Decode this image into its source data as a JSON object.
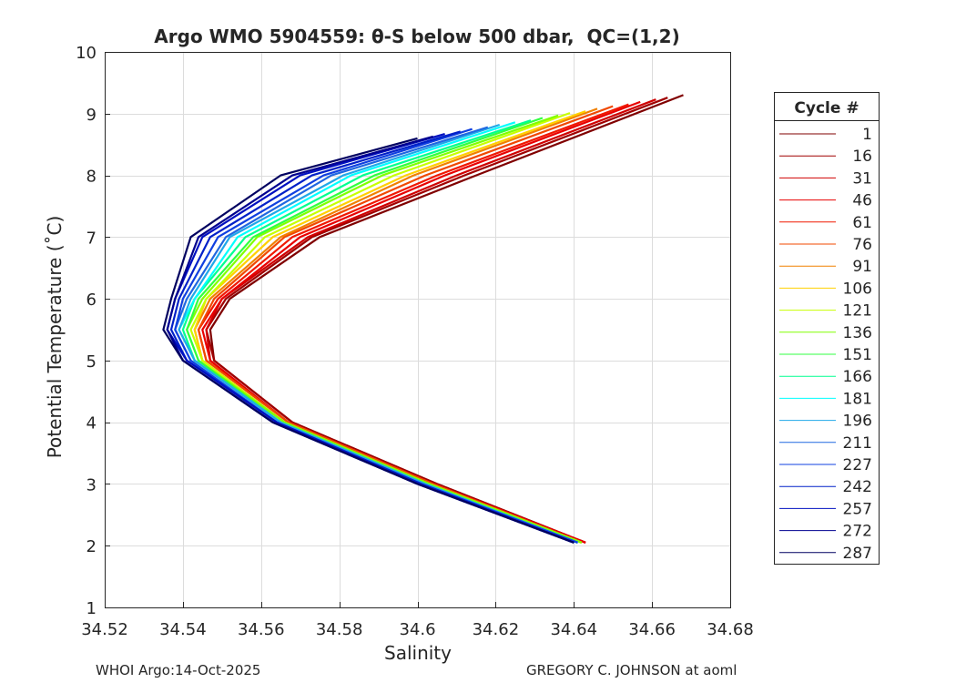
{
  "chart_data": {
    "type": "line",
    "title": "Argo WMO 5904559: θ-S below 500 dbar,  QC=(1,2)",
    "xlabel": "Salinity",
    "ylabel": "Potential Temperature (˚C)",
    "xlim": [
      34.52,
      34.68
    ],
    "ylim": [
      1,
      10
    ],
    "xticks": [
      "34.52",
      "34.54",
      "34.56",
      "34.58",
      "34.6",
      "34.62",
      "34.64",
      "34.66",
      "34.68"
    ],
    "xtick_values": [
      34.52,
      34.54,
      34.56,
      34.58,
      34.6,
      34.62,
      34.64,
      34.66,
      34.68
    ],
    "yticks": [
      "1",
      "2",
      "3",
      "4",
      "5",
      "6",
      "7",
      "8",
      "9",
      "10"
    ],
    "ytick_values": [
      1,
      2,
      3,
      4,
      5,
      6,
      7,
      8,
      9,
      10
    ],
    "grid": true,
    "legend": {
      "title": "Cycle #",
      "placement": "right-outside"
    },
    "theta_levels": [
      2.05,
      3,
      4,
      5,
      5.5,
      6,
      7,
      8
    ],
    "series": [
      {
        "name": "1",
        "color": "#800000",
        "salinity": [
          34.643,
          34.605,
          34.568,
          34.548,
          34.547,
          34.552,
          34.575,
          34.615
        ],
        "top": [
          34.668,
          9.3
        ]
      },
      {
        "name": "16",
        "color": "#a00000",
        "salinity": [
          34.643,
          34.605,
          34.568,
          34.548,
          34.546,
          34.551,
          34.573,
          34.612
        ],
        "top": [
          34.664,
          9.26
        ]
      },
      {
        "name": "31",
        "color": "#d00000",
        "salinity": [
          34.643,
          34.604,
          34.567,
          34.547,
          34.546,
          34.55,
          34.572,
          34.61
        ],
        "top": [
          34.661,
          9.23
        ]
      },
      {
        "name": "46",
        "color": "#e80000",
        "salinity": [
          34.643,
          34.604,
          34.567,
          34.547,
          34.545,
          34.55,
          34.57,
          34.607
        ],
        "top": [
          34.657,
          9.19
        ]
      },
      {
        "name": "61",
        "color": "#f01800",
        "salinity": [
          34.642,
          34.604,
          34.567,
          34.546,
          34.544,
          34.549,
          34.568,
          34.605
        ],
        "top": [
          34.654,
          9.15
        ]
      },
      {
        "name": "76",
        "color": "#f04800",
        "salinity": [
          34.642,
          34.604,
          34.567,
          34.546,
          34.544,
          34.548,
          34.566,
          34.602
        ],
        "top": [
          34.65,
          9.12
        ]
      },
      {
        "name": "91",
        "color": "#f08000",
        "salinity": [
          34.642,
          34.603,
          34.566,
          34.545,
          34.543,
          34.547,
          34.565,
          34.599
        ],
        "top": [
          34.646,
          9.08
        ]
      },
      {
        "name": "106",
        "color": "#ffd000",
        "salinity": [
          34.642,
          34.603,
          34.566,
          34.545,
          34.543,
          34.546,
          34.563,
          34.597
        ],
        "top": [
          34.643,
          9.04
        ]
      },
      {
        "name": "121",
        "color": "#c8ff00",
        "salinity": [
          34.642,
          34.603,
          34.566,
          34.545,
          34.542,
          34.546,
          34.561,
          34.594
        ],
        "top": [
          34.639,
          9.01
        ]
      },
      {
        "name": "136",
        "color": "#80ff00",
        "salinity": [
          34.642,
          34.603,
          34.566,
          34.544,
          34.541,
          34.545,
          34.559,
          34.591
        ],
        "top": [
          34.636,
          8.97
        ]
      },
      {
        "name": "151",
        "color": "#30ff40",
        "salinity": [
          34.641,
          34.602,
          34.565,
          34.544,
          34.541,
          34.544,
          34.558,
          34.589
        ],
        "top": [
          34.632,
          8.93
        ]
      },
      {
        "name": "166",
        "color": "#00ff90",
        "salinity": [
          34.641,
          34.602,
          34.565,
          34.543,
          34.54,
          34.543,
          34.556,
          34.586
        ],
        "top": [
          34.629,
          8.89
        ]
      },
      {
        "name": "181",
        "color": "#00ffff",
        "salinity": [
          34.641,
          34.602,
          34.565,
          34.543,
          34.539,
          34.543,
          34.554,
          34.583
        ],
        "top": [
          34.625,
          8.86
        ]
      },
      {
        "name": "196",
        "color": "#20a8e8",
        "salinity": [
          34.641,
          34.602,
          34.565,
          34.543,
          34.539,
          34.542,
          34.552,
          34.581
        ],
        "top": [
          34.621,
          8.82
        ]
      },
      {
        "name": "211",
        "color": "#2068e0",
        "salinity": [
          34.641,
          34.601,
          34.564,
          34.542,
          34.538,
          34.541,
          34.551,
          34.578
        ],
        "top": [
          34.618,
          8.78
        ]
      },
      {
        "name": "227",
        "color": "#1040e0",
        "salinity": [
          34.641,
          34.601,
          34.564,
          34.542,
          34.538,
          34.54,
          34.549,
          34.576
        ],
        "top": [
          34.614,
          8.75
        ]
      },
      {
        "name": "242",
        "color": "#0020c8",
        "salinity": [
          34.64,
          34.601,
          34.564,
          34.541,
          34.537,
          34.539,
          34.547,
          34.573
        ],
        "top": [
          34.611,
          8.71
        ]
      },
      {
        "name": "257",
        "color": "#0010c0",
        "salinity": [
          34.64,
          34.6,
          34.564,
          34.541,
          34.536,
          34.538,
          34.545,
          34.57
        ],
        "top": [
          34.607,
          8.67
        ]
      },
      {
        "name": "272",
        "color": "#000090",
        "salinity": [
          34.64,
          34.6,
          34.563,
          34.54,
          34.536,
          34.538,
          34.544,
          34.568
        ],
        "top": [
          34.604,
          8.63
        ]
      },
      {
        "name": "287",
        "color": "#000060",
        "salinity": [
          34.64,
          34.6,
          34.563,
          34.54,
          34.535,
          34.537,
          34.542,
          34.565
        ],
        "top": [
          34.6,
          8.6
        ]
      }
    ]
  },
  "footer": {
    "left": "WHOI Argo:14-Oct-2025",
    "right": "GREGORY C. JOHNSON at aoml"
  }
}
